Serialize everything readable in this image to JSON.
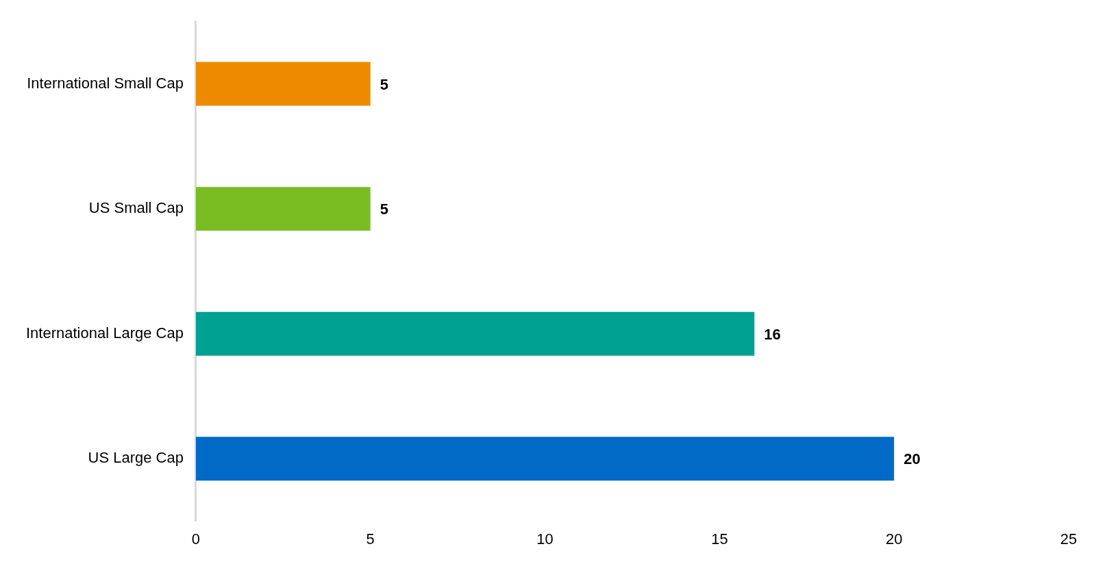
{
  "chart_data": {
    "type": "bar",
    "orientation": "horizontal",
    "categories": [
      "International Small Cap",
      "US Small Cap",
      "International Large Cap",
      "US Large Cap"
    ],
    "values": [
      5,
      5,
      16,
      20
    ],
    "colors": [
      "#ee8a00",
      "#7abd22",
      "#00a092",
      "#006ac6"
    ],
    "xlim": [
      0,
      25
    ],
    "xticks": [
      0,
      5,
      10,
      15,
      20,
      25
    ],
    "grid": false,
    "legend": false,
    "data_labels": true
  }
}
